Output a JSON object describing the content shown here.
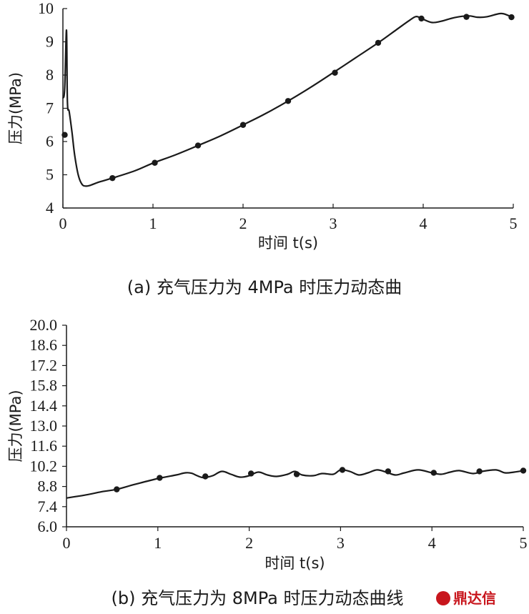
{
  "chart_data": [
    {
      "type": "line",
      "caption": "(a) 充气压力为 4MPa 时压力动态曲",
      "xlabel": "时间 t(s)",
      "ylabel": "压力(MPa)",
      "xlim": [
        0,
        5
      ],
      "ylim": [
        4,
        10
      ],
      "xticks": [
        "0",
        "1",
        "2",
        "3",
        "4",
        "5"
      ],
      "yticks": [
        "4",
        "5",
        "6",
        "7",
        "8",
        "9",
        "10"
      ],
      "grid": false,
      "series": [
        {
          "curve": [
            [
              0.0,
              7.3
            ],
            [
              0.02,
              7.6
            ],
            [
              0.04,
              9.35
            ],
            [
              0.05,
              7.2
            ],
            [
              0.07,
              6.9
            ],
            [
              0.1,
              6.3
            ],
            [
              0.13,
              5.6
            ],
            [
              0.17,
              5.0
            ],
            [
              0.21,
              4.72
            ],
            [
              0.25,
              4.66
            ],
            [
              0.3,
              4.68
            ],
            [
              0.4,
              4.78
            ],
            [
              0.55,
              4.9
            ],
            [
              0.8,
              5.12
            ],
            [
              1.0,
              5.35
            ],
            [
              1.25,
              5.6
            ],
            [
              1.5,
              5.88
            ],
            [
              1.75,
              6.17
            ],
            [
              2.0,
              6.5
            ],
            [
              2.25,
              6.84
            ],
            [
              2.5,
              7.22
            ],
            [
              2.75,
              7.63
            ],
            [
              3.0,
              8.07
            ],
            [
              3.25,
              8.52
            ],
            [
              3.5,
              8.97
            ],
            [
              3.7,
              9.36
            ],
            [
              3.85,
              9.65
            ],
            [
              3.92,
              9.76
            ],
            [
              3.97,
              9.72
            ],
            [
              4.0,
              9.68
            ],
            [
              4.1,
              9.58
            ],
            [
              4.2,
              9.62
            ],
            [
              4.35,
              9.73
            ],
            [
              4.5,
              9.78
            ],
            [
              4.6,
              9.74
            ],
            [
              4.7,
              9.75
            ],
            [
              4.85,
              9.85
            ],
            [
              4.92,
              9.82
            ],
            [
              5.0,
              9.72
            ]
          ],
          "markers": [
            [
              0.02,
              6.2
            ],
            [
              0.55,
              4.9
            ],
            [
              1.02,
              5.36
            ],
            [
              1.5,
              5.88
            ],
            [
              2.0,
              6.5
            ],
            [
              2.5,
              7.22
            ],
            [
              3.02,
              8.07
            ],
            [
              3.5,
              8.97
            ],
            [
              3.98,
              9.7
            ],
            [
              4.48,
              9.75
            ],
            [
              4.98,
              9.74
            ]
          ]
        }
      ]
    },
    {
      "type": "line",
      "caption": "(b) 充气压力为 8MPa 时压力动态曲线",
      "xlabel": "时间 t(s)",
      "ylabel": "压力(MPa)",
      "xlim": [
        0,
        5
      ],
      "ylim": [
        6.0,
        20.0
      ],
      "xticks": [
        "0",
        "1",
        "2",
        "3",
        "4",
        "5"
      ],
      "yticks": [
        "6.0",
        "7.4",
        "8.8",
        "10.2",
        "11.6",
        "13.0",
        "14.4",
        "15.8",
        "17.2",
        "18.6",
        "20.0"
      ],
      "grid": false,
      "series": [
        {
          "curve": [
            [
              0.0,
              8.0
            ],
            [
              0.2,
              8.2
            ],
            [
              0.4,
              8.45
            ],
            [
              0.55,
              8.6
            ],
            [
              0.75,
              8.95
            ],
            [
              1.0,
              9.35
            ],
            [
              1.2,
              9.6
            ],
            [
              1.3,
              9.75
            ],
            [
              1.37,
              9.72
            ],
            [
              1.43,
              9.55
            ],
            [
              1.5,
              9.42
            ],
            [
              1.6,
              9.55
            ],
            [
              1.7,
              9.85
            ],
            [
              1.8,
              9.65
            ],
            [
              1.9,
              9.45
            ],
            [
              2.0,
              9.55
            ],
            [
              2.1,
              9.8
            ],
            [
              2.2,
              9.6
            ],
            [
              2.3,
              9.5
            ],
            [
              2.42,
              9.65
            ],
            [
              2.5,
              9.85
            ],
            [
              2.58,
              9.6
            ],
            [
              2.7,
              9.55
            ],
            [
              2.8,
              9.7
            ],
            [
              2.92,
              9.65
            ],
            [
              3.0,
              9.95
            ],
            [
              3.1,
              9.85
            ],
            [
              3.2,
              9.6
            ],
            [
              3.3,
              9.75
            ],
            [
              3.4,
              9.95
            ],
            [
              3.5,
              9.8
            ],
            [
              3.6,
              9.6
            ],
            [
              3.7,
              9.75
            ],
            [
              3.85,
              9.95
            ],
            [
              4.0,
              9.75
            ],
            [
              4.1,
              9.65
            ],
            [
              4.2,
              9.8
            ],
            [
              4.3,
              9.9
            ],
            [
              4.45,
              9.7
            ],
            [
              4.55,
              9.85
            ],
            [
              4.7,
              9.95
            ],
            [
              4.8,
              9.75
            ],
            [
              4.9,
              9.8
            ],
            [
              5.0,
              9.9
            ]
          ],
          "markers": [
            [
              0.55,
              8.6
            ],
            [
              1.02,
              9.4
            ],
            [
              1.52,
              9.5
            ],
            [
              2.02,
              9.7
            ],
            [
              2.52,
              9.65
            ],
            [
              3.02,
              9.95
            ],
            [
              3.52,
              9.85
            ],
            [
              4.02,
              9.75
            ],
            [
              4.52,
              9.85
            ],
            [
              5.0,
              9.9
            ]
          ]
        }
      ]
    }
  ],
  "watermark": {
    "text": "鼎达信",
    "color": "#c8161d"
  }
}
